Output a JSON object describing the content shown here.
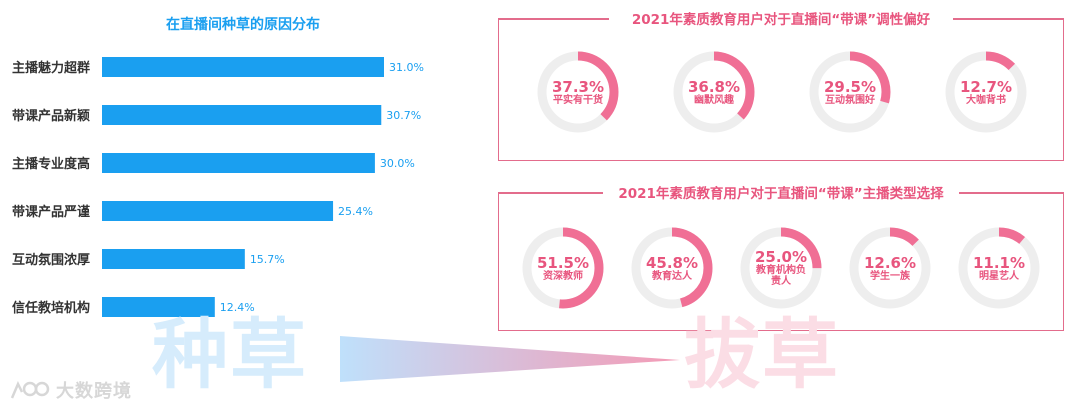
{
  "left_chart": {
    "title": "在直播间种草的原因分布"
  },
  "chart_data": [
    {
      "type": "bar",
      "orientation": "horizontal",
      "title": "在直播间种草的原因分布",
      "categories": [
        "主播魅力超群",
        "带课产品新颖",
        "主播专业度高",
        "带课产品严谨",
        "互动氛围浓厚",
        "信任教培机构"
      ],
      "values": [
        31.0,
        30.7,
        30.0,
        25.4,
        15.7,
        12.4
      ],
      "value_labels": [
        "31.0%",
        "30.7%",
        "30.0%",
        "25.4%",
        "15.7%",
        "12.4%"
      ],
      "unit": "%",
      "xlim": [
        0,
        31.0
      ],
      "bar_color": "#1a9ff0",
      "grid": false
    },
    {
      "type": "pie",
      "variant": "donut",
      "title": "2021年素质教育用户对于直播间“带课”调性偏好",
      "slices": [
        {
          "label": "平实有干货",
          "value": 37.3,
          "value_label": "37.3%"
        },
        {
          "label": "幽默风趣",
          "value": 36.8,
          "value_label": "36.8%"
        },
        {
          "label": "互动氛围好",
          "value": 29.5,
          "value_label": "29.5%"
        },
        {
          "label": "大咖背书",
          "value": 12.7,
          "value_label": "12.7%"
        }
      ],
      "ring_color": "#f06f95",
      "track_color": "#eeeeee"
    },
    {
      "type": "pie",
      "variant": "donut",
      "title": "2021年素质教育用户对于直播间“带课”主播类型选择",
      "slices": [
        {
          "label": "资深教师",
          "value": 51.5,
          "value_label": "51.5%"
        },
        {
          "label": "教育达人",
          "value": 45.8,
          "value_label": "45.8%"
        },
        {
          "label": "教育机构负责人",
          "value": 25.0,
          "value_label": "25.0%"
        },
        {
          "label": "学生一族",
          "value": 12.6,
          "value_label": "12.6%"
        },
        {
          "label": "明星艺人",
          "value": 11.1,
          "value_label": "11.1%"
        }
      ],
      "ring_color": "#f06f95",
      "track_color": "#eeeeee"
    }
  ],
  "decor": {
    "big_left": "种草",
    "big_right": "拔草",
    "big_left_color": "#d6ecfc",
    "big_right_color": "#fbdde5",
    "watermark": "大数跨境"
  },
  "colors": {
    "bar": "#1a9ff0",
    "accent_pink": "#e8557e",
    "ring": "#f06f95",
    "track": "#eeeeee"
  }
}
